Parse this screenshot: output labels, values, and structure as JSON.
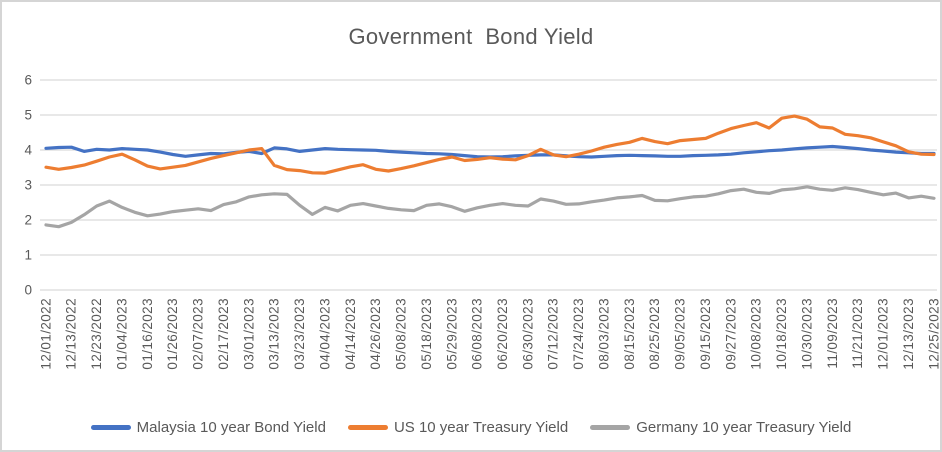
{
  "chart_data": {
    "type": "line",
    "title": "Government  Bond Yield",
    "xlabel": "",
    "ylabel": "",
    "ylim": [
      0,
      6
    ],
    "y_ticks": [
      0,
      1,
      2,
      3,
      4,
      5,
      6
    ],
    "grid": "horizontal",
    "legend_position": "bottom",
    "axis_color": "#595959",
    "gridline_color": "#d9d9d9",
    "x_tick_labels": [
      "12/01/2022",
      "12/13/2022",
      "12/23/2022",
      "01/04/2023",
      "01/16/2023",
      "01/26/2023",
      "02/07/2023",
      "02/17/2023",
      "03/01/2023",
      "03/13/2023",
      "03/23/2023",
      "04/04/2023",
      "04/14/2023",
      "04/26/2023",
      "05/08/2023",
      "05/18/2023",
      "05/29/2023",
      "06/08/2023",
      "06/20/2023",
      "06/30/2023",
      "07/12/2023",
      "07/24/2023",
      "08/03/2023",
      "08/15/2023",
      "08/25/2023",
      "09/05/2023",
      "09/15/2023",
      "09/27/2023",
      "10/08/2023",
      "10/18/2023",
      "10/30/2023",
      "11/09/2023",
      "11/21/2023",
      "12/01/2023",
      "12/13/2023",
      "12/25/2023"
    ],
    "points_per_label_interval": 2,
    "series": [
      {
        "name": "Malaysia 10 year Bond Yield",
        "color": "#4472C4",
        "values": [
          4.05,
          4.07,
          4.08,
          3.96,
          4.02,
          4.0,
          4.04,
          4.02,
          4.0,
          3.94,
          3.87,
          3.82,
          3.86,
          3.9,
          3.89,
          3.93,
          3.96,
          3.9,
          4.06,
          4.03,
          3.96,
          4.0,
          4.04,
          4.02,
          4.01,
          4.0,
          3.99,
          3.96,
          3.94,
          3.92,
          3.9,
          3.89,
          3.87,
          3.84,
          3.81,
          3.8,
          3.81,
          3.83,
          3.85,
          3.86,
          3.86,
          3.83,
          3.81,
          3.8,
          3.82,
          3.84,
          3.85,
          3.84,
          3.83,
          3.82,
          3.82,
          3.84,
          3.85,
          3.86,
          3.88,
          3.92,
          3.95,
          3.98,
          4.0,
          4.03,
          4.06,
          4.08,
          4.1,
          4.07,
          4.04,
          4.0,
          3.97,
          3.94,
          3.92,
          3.9,
          3.9
        ]
      },
      {
        "name": "US 10 year Treasury Yield",
        "color": "#ED7D31",
        "values": [
          3.51,
          3.45,
          3.5,
          3.57,
          3.68,
          3.8,
          3.88,
          3.72,
          3.54,
          3.46,
          3.51,
          3.56,
          3.66,
          3.76,
          3.84,
          3.92,
          4.0,
          4.04,
          3.56,
          3.44,
          3.41,
          3.35,
          3.34,
          3.43,
          3.52,
          3.58,
          3.45,
          3.4,
          3.47,
          3.55,
          3.64,
          3.73,
          3.8,
          3.7,
          3.73,
          3.78,
          3.74,
          3.72,
          3.84,
          4.02,
          3.86,
          3.81,
          3.88,
          3.97,
          4.08,
          4.16,
          4.22,
          4.33,
          4.24,
          4.18,
          4.27,
          4.3,
          4.33,
          4.48,
          4.61,
          4.7,
          4.78,
          4.63,
          4.91,
          4.97,
          4.88,
          4.66,
          4.63,
          4.45,
          4.41,
          4.35,
          4.23,
          4.12,
          3.95,
          3.88,
          3.87
        ]
      },
      {
        "name": "Germany 10 year Treasury Yield",
        "color": "#A5A5A5",
        "values": [
          1.86,
          1.81,
          1.93,
          2.15,
          2.4,
          2.54,
          2.36,
          2.22,
          2.12,
          2.17,
          2.24,
          2.28,
          2.32,
          2.27,
          2.44,
          2.52,
          2.66,
          2.72,
          2.75,
          2.73,
          2.42,
          2.16,
          2.36,
          2.26,
          2.42,
          2.47,
          2.4,
          2.33,
          2.29,
          2.27,
          2.42,
          2.46,
          2.38,
          2.25,
          2.35,
          2.42,
          2.47,
          2.42,
          2.4,
          2.6,
          2.54,
          2.45,
          2.46,
          2.52,
          2.57,
          2.63,
          2.66,
          2.7,
          2.56,
          2.55,
          2.61,
          2.66,
          2.68,
          2.75,
          2.84,
          2.88,
          2.79,
          2.76,
          2.86,
          2.89,
          2.95,
          2.88,
          2.85,
          2.92,
          2.87,
          2.79,
          2.72,
          2.77,
          2.63,
          2.68,
          2.62
        ]
      }
    ]
  }
}
